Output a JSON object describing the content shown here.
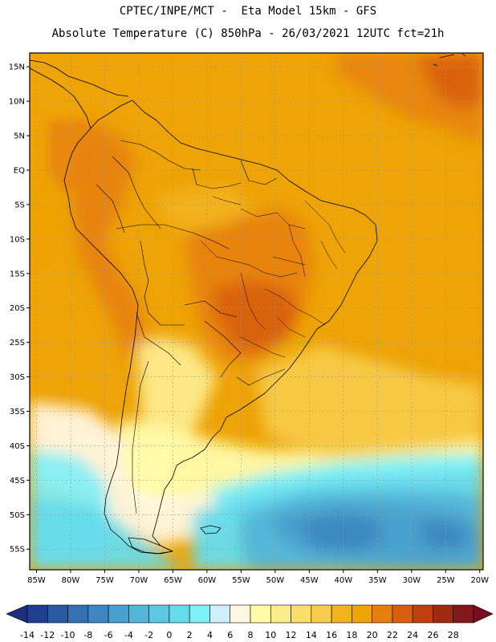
{
  "header": {
    "line1": "CPTEC/INPE/MCT -  Eta Model 15km - GFS",
    "line2": "Absolute Temperature (C) 850hPa - 26/03/2021 12UTC fct=21h"
  },
  "map": {
    "lat_labels": [
      "15N",
      "10N",
      "5N",
      "EQ",
      "5S",
      "10S",
      "15S",
      "20S",
      "25S",
      "30S",
      "35S",
      "40S",
      "45S",
      "50S",
      "55S"
    ],
    "lat_values": [
      15,
      10,
      5,
      0,
      -5,
      -10,
      -15,
      -20,
      -25,
      -30,
      -35,
      -40,
      -45,
      -50,
      -55
    ],
    "lon_labels": [
      "85W",
      "80W",
      "75W",
      "70W",
      "65W",
      "60W",
      "55W",
      "50W",
      "45W",
      "40W",
      "35W",
      "30W",
      "25W",
      "20W"
    ],
    "lon_values": [
      -85,
      -80,
      -75,
      -70,
      -65,
      -60,
      -55,
      -50,
      -45,
      -40,
      -35,
      -30,
      -25,
      -20
    ],
    "lon_range": [
      -86,
      -19.5
    ],
    "lat_range": [
      -58,
      17
    ]
  },
  "colorbar": {
    "labels": [
      "-14",
      "-12",
      "-10",
      "-8",
      "-6",
      "-4",
      "-2",
      "0",
      "2",
      "4",
      "6",
      "8",
      "10",
      "12",
      "14",
      "16",
      "18",
      "20",
      "22",
      "24",
      "26",
      "28"
    ],
    "colors": [
      "#1f3f8f",
      "#2a5a9f",
      "#3570b0",
      "#3e87c0",
      "#48a0cc",
      "#54b5d8",
      "#5ec8e2",
      "#65dcec",
      "#7ef0f6",
      "#cfeffb",
      "#fff7e0",
      "#fffcaa",
      "#fdec8c",
      "#fadf6a",
      "#f7cd4b",
      "#f2b41c",
      "#eea306",
      "#e67e0e",
      "#d85e0e",
      "#c13f0f",
      "#a02a11",
      "#80191b"
    ],
    "under_color": "#1c2f7a",
    "over_color": "#780d21"
  }
}
